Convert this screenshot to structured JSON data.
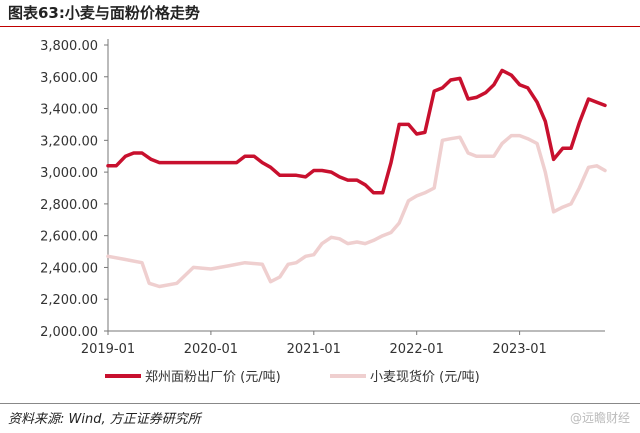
{
  "header": {
    "title": "图表63:小麦与面粉价格走势"
  },
  "source": "资料来源: Wind, 方正证券研究所",
  "watermark": "@远瞻财经",
  "chart_data": {
    "type": "line",
    "y_ticks": [
      "2,000.00",
      "2,200.00",
      "2,400.00",
      "2,600.00",
      "2,800.00",
      "3,000.00",
      "3,200.00",
      "3,400.00",
      "3,600.00",
      "3,800.00"
    ],
    "x_ticks": [
      "2019-01",
      "2020-01",
      "2021-01",
      "2022-01",
      "2023-01"
    ],
    "ylim": [
      2000,
      3800
    ],
    "xlim": [
      2019.0,
      2023.83
    ],
    "grid": false,
    "legend": "bottom",
    "series": [
      {
        "name": "郑州面粉出厂价 (元/吨)",
        "color": "#c8102e",
        "x": [
          2019.0,
          2019.08,
          2019.17,
          2019.25,
          2019.33,
          2019.42,
          2019.5,
          2019.75,
          2020.0,
          2020.17,
          2020.25,
          2020.33,
          2020.42,
          2020.5,
          2020.58,
          2020.67,
          2020.83,
          2020.92,
          2021.0,
          2021.08,
          2021.17,
          2021.25,
          2021.33,
          2021.42,
          2021.5,
          2021.58,
          2021.67,
          2021.75,
          2021.83,
          2021.92,
          2022.0,
          2022.08,
          2022.17,
          2022.25,
          2022.33,
          2022.42,
          2022.5,
          2022.58,
          2022.67,
          2022.75,
          2022.83,
          2022.92,
          2023.0,
          2023.08,
          2023.17,
          2023.25,
          2023.33,
          2023.42,
          2023.5,
          2023.58,
          2023.67,
          2023.75,
          2023.83
        ],
        "y": [
          3040,
          3040,
          3100,
          3120,
          3120,
          3080,
          3060,
          3060,
          3060,
          3060,
          3060,
          3100,
          3100,
          3060,
          3030,
          2980,
          2980,
          2970,
          3010,
          3010,
          3000,
          2970,
          2950,
          2950,
          2920,
          2870,
          2870,
          3060,
          3300,
          3300,
          3240,
          3250,
          3510,
          3530,
          3580,
          3590,
          3460,
          3470,
          3500,
          3550,
          3640,
          3610,
          3550,
          3530,
          3440,
          3320,
          3080,
          3150,
          3150,
          3310,
          3460,
          3440,
          3420
        ]
      },
      {
        "name": "小麦现货价 (元/吨)",
        "color": "#efcfcf",
        "x": [
          2019.0,
          2019.17,
          2019.33,
          2019.4,
          2019.5,
          2019.67,
          2019.83,
          2020.0,
          2020.17,
          2020.33,
          2020.5,
          2020.58,
          2020.67,
          2020.75,
          2020.83,
          2020.92,
          2021.0,
          2021.08,
          2021.17,
          2021.25,
          2021.33,
          2021.42,
          2021.5,
          2021.58,
          2021.67,
          2021.75,
          2021.83,
          2021.92,
          2022.0,
          2022.08,
          2022.17,
          2022.25,
          2022.33,
          2022.42,
          2022.5,
          2022.58,
          2022.67,
          2022.75,
          2022.83,
          2022.92,
          2023.0,
          2023.08,
          2023.17,
          2023.25,
          2023.33,
          2023.42,
          2023.5,
          2023.58,
          2023.67,
          2023.75,
          2023.83
        ],
        "y": [
          2470,
          2450,
          2430,
          2300,
          2280,
          2300,
          2400,
          2390,
          2410,
          2430,
          2420,
          2310,
          2340,
          2420,
          2430,
          2470,
          2480,
          2550,
          2590,
          2580,
          2550,
          2560,
          2550,
          2570,
          2600,
          2620,
          2680,
          2820,
          2850,
          2870,
          2900,
          3200,
          3210,
          3220,
          3120,
          3100,
          3100,
          3100,
          3180,
          3230,
          3230,
          3210,
          3180,
          3000,
          2750,
          2780,
          2800,
          2900,
          3030,
          3040,
          3010
        ]
      }
    ]
  }
}
